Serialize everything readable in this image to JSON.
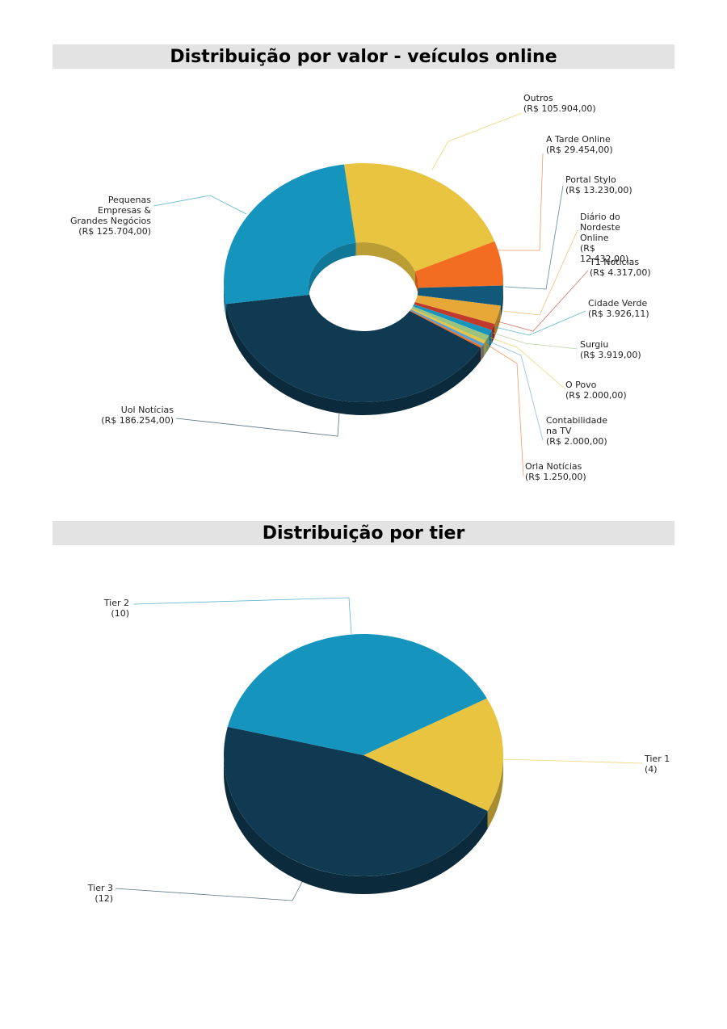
{
  "chart_data": [
    {
      "type": "donut",
      "title": "Distribuição por valor - veículos online",
      "categories": [
        "Outros",
        "A Tarde Online",
        "Portal Stylo",
        "Diário do Nordeste Online",
        "T1 Notícias",
        "Cidade Verde",
        "Surgiu",
        "O Povo",
        "Contabilidade na TV",
        "Orla Notícias",
        "Uol Notícias",
        "Pequenas Empresas & Grandes Negócios"
      ],
      "values": [
        105904.0,
        29454.0,
        13230.0,
        12432.0,
        4317.0,
        3926.11,
        3919.0,
        2000.0,
        2000.0,
        1250.0,
        186254.0,
        125704.0
      ],
      "value_labels": [
        "(R$ 105.904,00)",
        "(R$ 29.454,00)",
        "(R$ 13.230,00)",
        "(R$ 12.432,00)",
        "(R$ 4.317,00)",
        "(R$ 3.926,11)",
        "(R$ 3.919,00)",
        "(R$ 2.000,00)",
        "(R$ 2.000,00)",
        "(R$ 1.250,00)",
        "(R$ 186.254,00)",
        "(R$ 125.704,00)"
      ],
      "colors": [
        "#e8c441",
        "#f26d21",
        "#12587a",
        "#e8a838",
        "#c0392b",
        "#1595bd",
        "#9bc27f",
        "#e8c441",
        "#5a9fd4",
        "#f26d21",
        "#0f3a52",
        "#1595bd"
      ]
    },
    {
      "type": "pie",
      "title": "Distribuição por tier",
      "categories": [
        "Tier 1",
        "Tier 3",
        "Tier 2"
      ],
      "values": [
        4,
        12,
        10
      ],
      "value_labels": [
        "(4)",
        "(12)",
        "(10)"
      ],
      "colors": [
        "#e8c441",
        "#0f3a52",
        "#1595bd"
      ]
    }
  ]
}
